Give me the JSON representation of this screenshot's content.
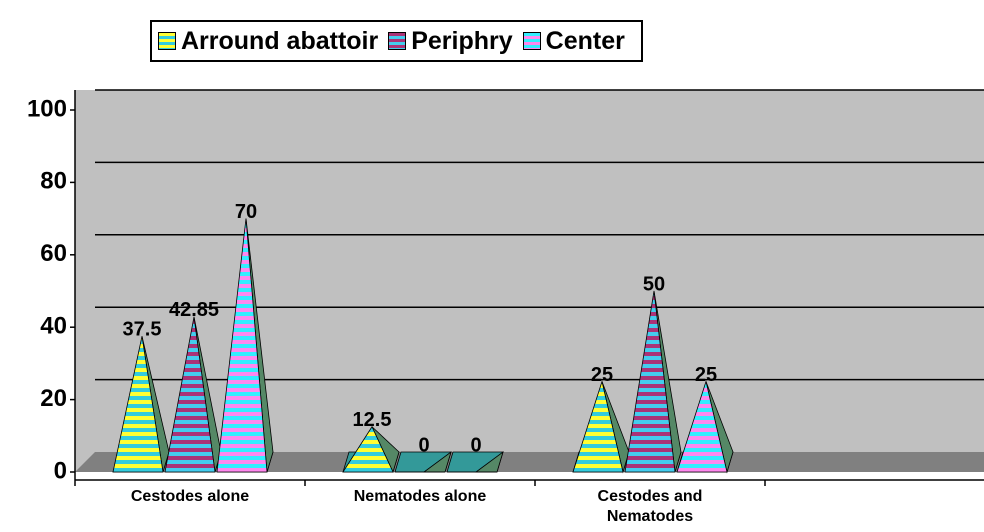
{
  "chart_data": {
    "type": "pyramid",
    "categories": [
      "Cestodes alone",
      "Nematodes alone",
      "Cestodes and Nematodes",
      null
    ],
    "series": [
      {
        "name": "Arround abattoir",
        "color": "#ffff33",
        "stripe_color": "#33ccdd",
        "values": [
          37.5,
          12.5,
          25,
          null
        ]
      },
      {
        "name": "Periphry",
        "color": "#aa3377",
        "stripe_color": "#44ccee",
        "values": [
          42.85,
          0,
          50,
          null
        ]
      },
      {
        "name": "Center",
        "color": "#33eeff",
        "stripe_color": "#ff88ee",
        "values": [
          70,
          0,
          25,
          null
        ]
      }
    ],
    "ylim": [
      0,
      100
    ],
    "yticks": [
      0,
      20,
      40,
      60,
      80,
      100
    ],
    "grid": true,
    "legend": "top"
  }
}
